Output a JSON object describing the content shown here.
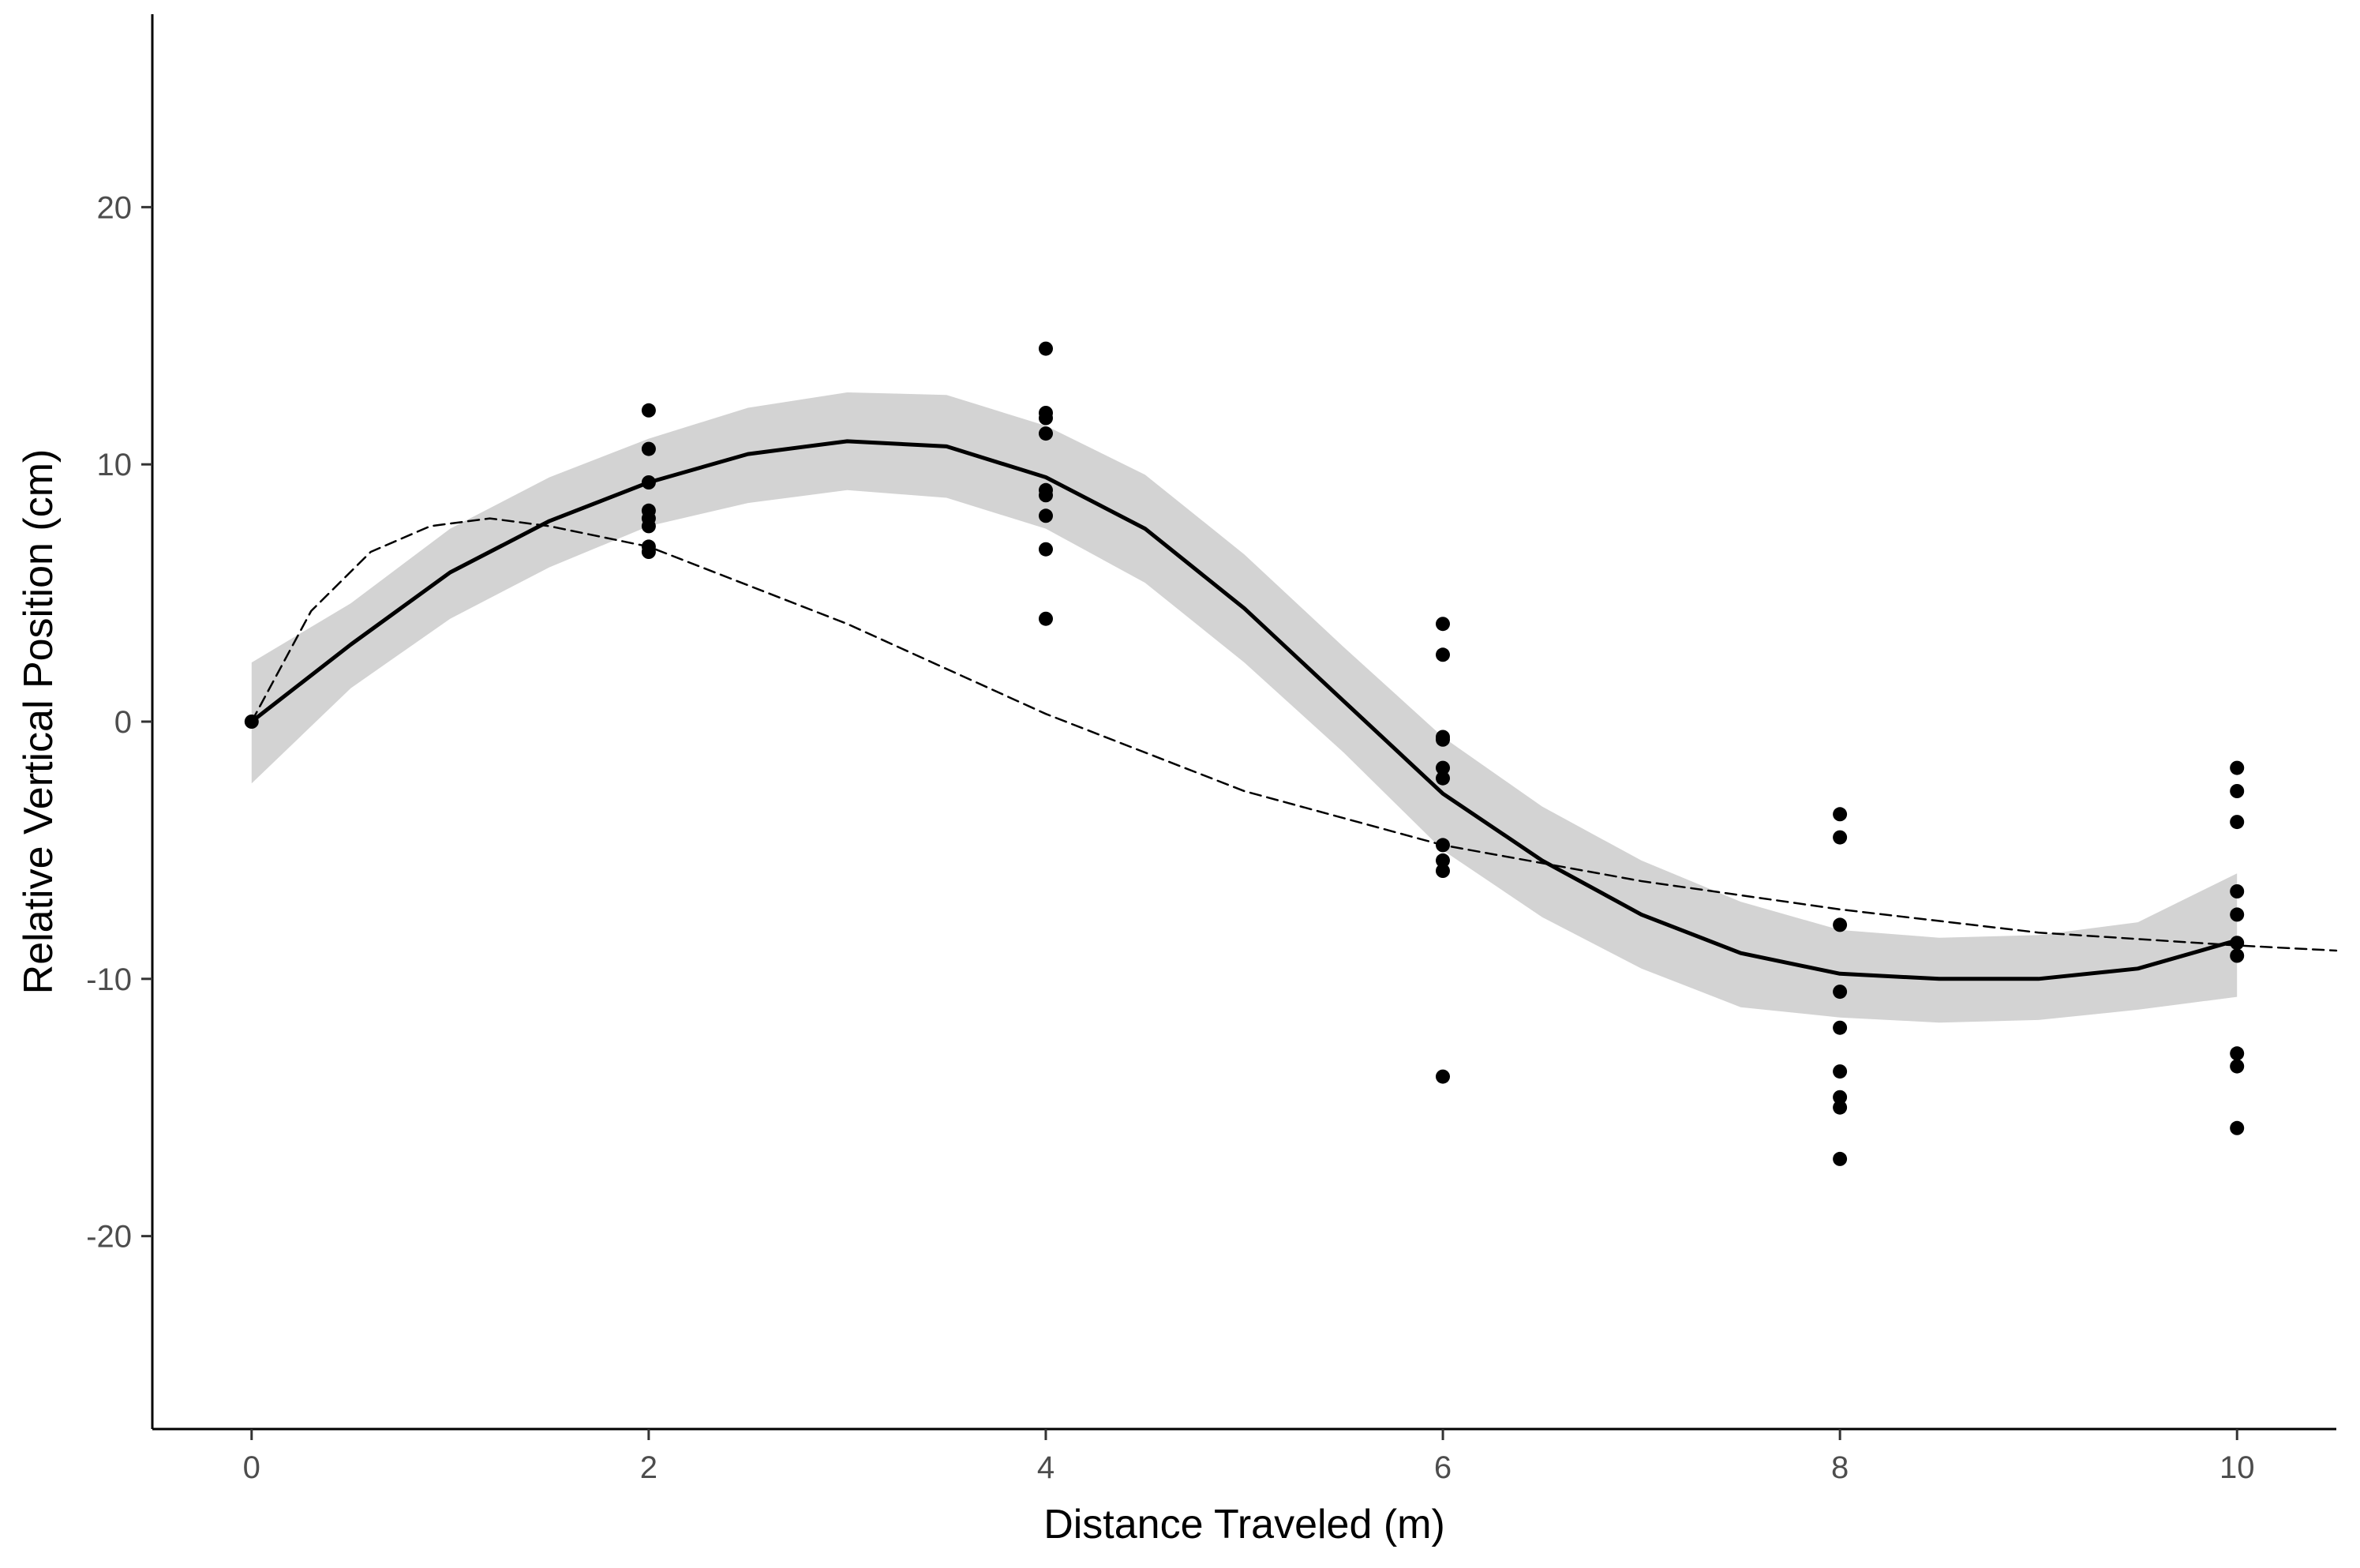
{
  "chart_data": {
    "type": "scatter",
    "title": "",
    "xlabel": "Distance Traveled (m)",
    "ylabel": "Relative Vertical Position (cm)",
    "xlim": [
      -0.5,
      10.5
    ],
    "ylim": [
      -27.5,
      27.5
    ],
    "x_ticks": [
      0,
      2,
      4,
      6,
      8,
      10
    ],
    "y_ticks": [
      -20,
      -10,
      0,
      10,
      20
    ],
    "grid": false,
    "points": [
      {
        "x": 0,
        "y": 0
      },
      {
        "x": 2,
        "y": 12.1
      },
      {
        "x": 2,
        "y": 10.6
      },
      {
        "x": 2,
        "y": 9.3
      },
      {
        "x": 2,
        "y": 8.2
      },
      {
        "x": 2,
        "y": 7.9
      },
      {
        "x": 2,
        "y": 7.6
      },
      {
        "x": 2,
        "y": 6.8
      },
      {
        "x": 2,
        "y": 6.6
      },
      {
        "x": 4,
        "y": 14.5
      },
      {
        "x": 4,
        "y": 12.0
      },
      {
        "x": 4,
        "y": 11.8
      },
      {
        "x": 4,
        "y": 11.2
      },
      {
        "x": 4,
        "y": 9.0
      },
      {
        "x": 4,
        "y": 8.8
      },
      {
        "x": 4,
        "y": 8.0
      },
      {
        "x": 4,
        "y": 6.7
      },
      {
        "x": 4,
        "y": 4.0
      },
      {
        "x": 6,
        "y": 3.8
      },
      {
        "x": 6,
        "y": 2.6
      },
      {
        "x": 6,
        "y": -0.6
      },
      {
        "x": 6,
        "y": -0.7
      },
      {
        "x": 6,
        "y": -1.8
      },
      {
        "x": 6,
        "y": -2.2
      },
      {
        "x": 6,
        "y": -4.8
      },
      {
        "x": 6,
        "y": -5.4
      },
      {
        "x": 6,
        "y": -5.8
      },
      {
        "x": 6,
        "y": -13.8
      },
      {
        "x": 8,
        "y": -3.6
      },
      {
        "x": 8,
        "y": -4.5
      },
      {
        "x": 8,
        "y": -7.9
      },
      {
        "x": 8,
        "y": -10.5
      },
      {
        "x": 8,
        "y": -11.9
      },
      {
        "x": 8,
        "y": -13.6
      },
      {
        "x": 8,
        "y": -14.6
      },
      {
        "x": 8,
        "y": -15.0
      },
      {
        "x": 8,
        "y": -17.0
      },
      {
        "x": 10,
        "y": -1.8
      },
      {
        "x": 10,
        "y": -2.7
      },
      {
        "x": 10,
        "y": -3.9
      },
      {
        "x": 10,
        "y": -6.6
      },
      {
        "x": 10,
        "y": -7.5
      },
      {
        "x": 10,
        "y": -8.6
      },
      {
        "x": 10,
        "y": -9.1
      },
      {
        "x": 10,
        "y": -12.9
      },
      {
        "x": 10,
        "y": -13.4
      },
      {
        "x": 10,
        "y": -15.8
      }
    ],
    "series": [
      {
        "style": "solid",
        "color": "#000000",
        "x": [
          0,
          0.5,
          1.0,
          1.5,
          2.0,
          2.5,
          3.0,
          3.5,
          4.0,
          4.5,
          5.0,
          5.5,
          6.0,
          6.5,
          7.0,
          7.5,
          8.0,
          8.5,
          9.0,
          9.5,
          10.0
        ],
        "y": [
          0,
          3.0,
          5.8,
          7.8,
          9.3,
          10.4,
          10.9,
          10.7,
          9.5,
          7.5,
          4.4,
          0.8,
          -2.8,
          -5.4,
          -7.5,
          -9.0,
          -9.8,
          -10.0,
          -10.0,
          -9.6,
          -8.5
        ],
        "ci_lower": [
          -2.4,
          1.3,
          4.0,
          6.0,
          7.6,
          8.5,
          9.0,
          8.7,
          7.5,
          5.4,
          2.3,
          -1.2,
          -5.0,
          -7.6,
          -9.6,
          -11.1,
          -11.5,
          -11.7,
          -11.6,
          -11.2,
          -10.7
        ],
        "ci_upper": [
          2.3,
          4.6,
          7.5,
          9.5,
          11.0,
          12.2,
          12.8,
          12.7,
          11.5,
          9.6,
          6.5,
          2.9,
          -0.6,
          -3.3,
          -5.4,
          -7.0,
          -8.1,
          -8.4,
          -8.3,
          -7.8,
          -5.9
        ]
      },
      {
        "style": "dashed",
        "color": "#000000",
        "x": [
          0,
          0.3,
          0.6,
          0.9,
          1.2,
          1.5,
          2.0,
          3.0,
          4.0,
          5.0,
          6.0,
          7.0,
          8.0,
          9.0,
          10.0,
          10.5
        ],
        "y": [
          0,
          4.3,
          6.6,
          7.6,
          7.9,
          7.6,
          6.8,
          3.8,
          0.3,
          -2.7,
          -4.8,
          -6.2,
          -7.3,
          -8.2,
          -8.7,
          -8.9
        ]
      }
    ],
    "ribbon_color": "#d3d3d3",
    "point_color": "#000000"
  }
}
